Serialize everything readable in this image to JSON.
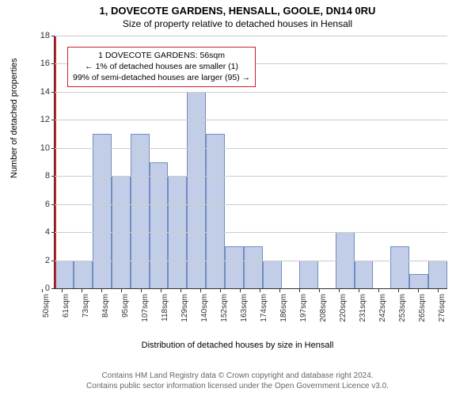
{
  "title_main": "1, DOVECOTE GARDENS, HENSALL, GOOLE, DN14 0RU",
  "title_sub": "Size of property relative to detached houses in Hensall",
  "chart": {
    "type": "histogram",
    "ymax": 18,
    "ytick_step": 2,
    "bar_color": "#c2cee8",
    "bar_border": "#718cc0",
    "grid_color": "#cccccc",
    "redline_color": "#d01c2a",
    "redline_category_index": 0,
    "categories": [
      "50sqm",
      "61sqm",
      "73sqm",
      "84sqm",
      "95sqm",
      "107sqm",
      "118sqm",
      "129sqm",
      "140sqm",
      "152sqm",
      "163sqm",
      "174sqm",
      "186sqm",
      "197sqm",
      "208sqm",
      "220sqm",
      "231sqm",
      "242sqm",
      "253sqm",
      "265sqm",
      "276sqm"
    ],
    "values": [
      2,
      2,
      11,
      8,
      11,
      9,
      8,
      14,
      11,
      3,
      3,
      2,
      0,
      2,
      0,
      4,
      2,
      0,
      3,
      1,
      2
    ],
    "annotation": {
      "line1": "1 DOVECOTE GARDENS: 56sqm",
      "line2": "← 1% of detached houses are smaller (1)",
      "line3": "99% of semi-detached houses are larger (95) →",
      "border_color": "#d01c2a"
    }
  },
  "y_axis_title": "Number of detached properties",
  "x_axis_title": "Distribution of detached houses by size in Hensall",
  "footer_line1": "Contains HM Land Registry data © Crown copyright and database right 2024.",
  "footer_line2": "Contains public sector information licensed under the Open Government Licence v3.0."
}
